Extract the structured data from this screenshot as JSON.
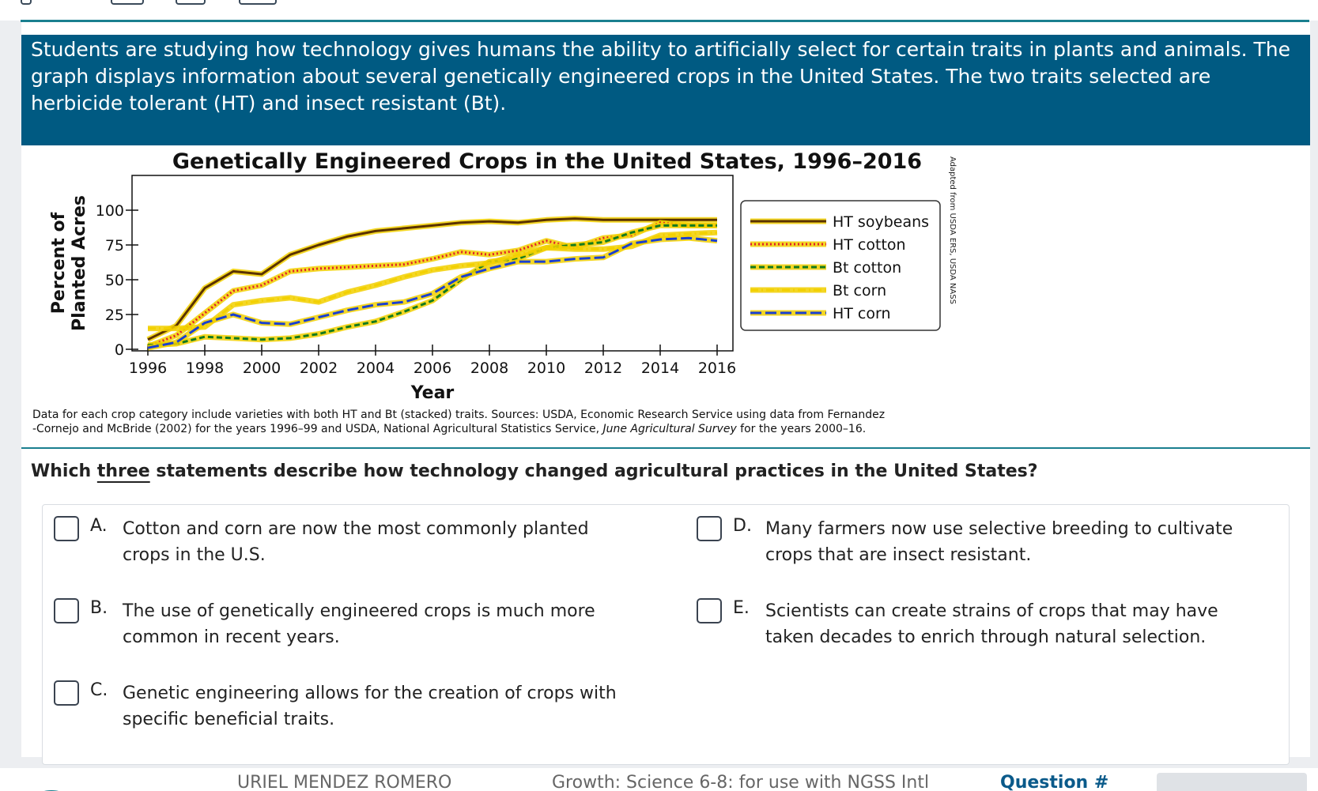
{
  "intro": {
    "text": "Students are studying how technology gives humans the ability to artificially select for certain traits in plants and animals. The graph displays information about several genetically engineered crops in the United States. The two traits selected are herbicide tolerant (HT) and insect resistant (Bt)."
  },
  "chart_data": {
    "type": "line",
    "title": "Genetically Engineered Crops in the United States, 1996–2016",
    "xlabel": "Year",
    "ylabel": [
      "Percent of",
      "Planted Acres"
    ],
    "xlim": [
      1996,
      2016
    ],
    "ylim": [
      0,
      100
    ],
    "x_ticks": [
      1996,
      1998,
      2000,
      2002,
      2004,
      2006,
      2008,
      2010,
      2012,
      2014,
      2016
    ],
    "y_ticks": [
      0,
      25,
      50,
      75,
      100
    ],
    "legend_position": "right",
    "side_note": "Adapted from USDA ERS, USDA NASS",
    "x": [
      1996,
      1997,
      1998,
      1999,
      2000,
      2001,
      2002,
      2003,
      2004,
      2005,
      2006,
      2007,
      2008,
      2009,
      2010,
      2011,
      2012,
      2013,
      2014,
      2015,
      2016
    ],
    "series": [
      {
        "name": "HT soybeans",
        "color": "#5a3200",
        "glow": "#f2d000",
        "style": "solid",
        "values": [
          7,
          17,
          44,
          56,
          54,
          68,
          75,
          81,
          85,
          87,
          89,
          91,
          92,
          91,
          93,
          94,
          93,
          93,
          93,
          93,
          93
        ]
      },
      {
        "name": "HT cotton",
        "color": "#e0202a",
        "glow": "#f2d000",
        "style": "dotted",
        "values": [
          2,
          10,
          26,
          42,
          46,
          56,
          58,
          59,
          60,
          61,
          65,
          70,
          68,
          71,
          78,
          73,
          80,
          82,
          91,
          89,
          89
        ]
      },
      {
        "name": "Bt cotton",
        "color": "#137a1e",
        "glow": "#f2d000",
        "style": "dashed",
        "values": [
          3,
          4,
          9,
          8,
          7,
          8,
          11,
          16,
          20,
          27,
          35,
          50,
          63,
          65,
          73,
          75,
          77,
          84,
          89,
          89,
          89
        ]
      },
      {
        "name": "Bt corn",
        "color": "#f2d000",
        "glow": "#f2d000",
        "style": "dashdot",
        "values": [
          15,
          15,
          16,
          32,
          35,
          37,
          34,
          41,
          46,
          52,
          57,
          60,
          62,
          68,
          73,
          72,
          72,
          74,
          82,
          83,
          84
        ]
      },
      {
        "name": "HT corn",
        "color": "#1a3fd1",
        "glow": "#f2d000",
        "style": "long-dash",
        "values": [
          1,
          5,
          19,
          25,
          19,
          18,
          23,
          28,
          32,
          34,
          40,
          52,
          58,
          63,
          63,
          65,
          66,
          76,
          79,
          80,
          78
        ]
      }
    ]
  },
  "sources": {
    "line1": "Data for each crop category include varieties with both HT and Bt (stacked) traits. Sources: USDA, Economic Research Service using data from Fernandez",
    "line2_a": "-Cornejo and McBride (2002) for the years 1996–99 and USDA, National Agricultural Statistics Service, ",
    "line2_em": "June Agricultural Survey",
    "line2_b": " for the years 2000–16."
  },
  "question": {
    "before": "Which ",
    "underlined": "three",
    "after": " statements describe how technology changed agricultural practices in the United States?"
  },
  "options": [
    {
      "letter": "A.",
      "text": "Cotton and corn are now the most commonly planted crops in the U.S."
    },
    {
      "letter": "B.",
      "text": "The use of genetically engineered crops is much more common in recent years."
    },
    {
      "letter": "C.",
      "text": "Genetic engineering allows for the creation of crops with specific beneficial traits."
    },
    {
      "letter": "D.",
      "text": "Many farmers now use selective breeding to cultivate crops that are insect resistant."
    },
    {
      "letter": "E.",
      "text": "Scientists can create strains of crops that may have taken decades to enrich through natural selection."
    }
  ],
  "footer": {
    "student": "URIEL MENDEZ ROMERO",
    "course": "Growth: Science 6-8: for use with NGSS Intl",
    "question_label": "Question #"
  }
}
